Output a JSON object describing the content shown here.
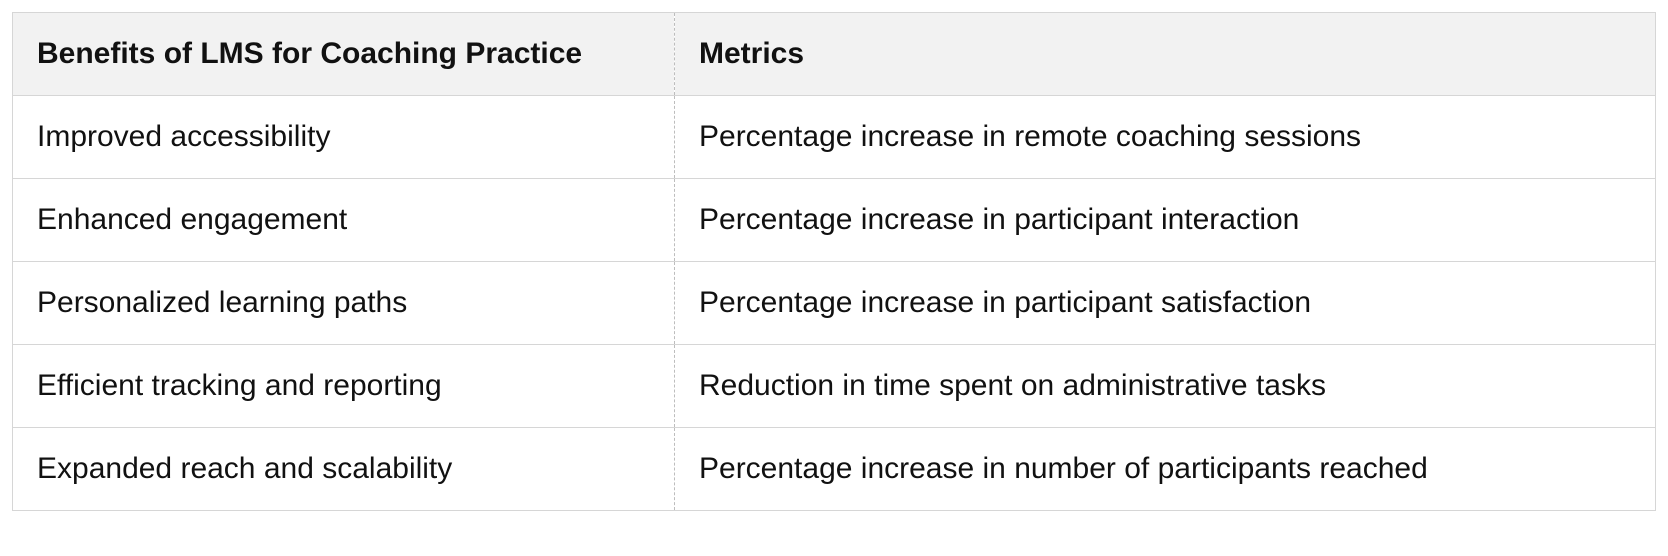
{
  "table": {
    "headers": [
      "Benefits of LMS for Coaching Practice",
      "Metrics"
    ],
    "rows": [
      [
        "Improved accessibility",
        "Percentage increase in remote coaching sessions"
      ],
      [
        "Enhanced engagement",
        "Percentage increase in participant interaction"
      ],
      [
        "Personalized learning paths",
        "Percentage increase in participant satisfaction"
      ],
      [
        "Efficient tracking and reporting",
        "Reduction in time spent on administrative tasks"
      ],
      [
        "Expanded reach and scalability",
        "Percentage increase in number of participants reached"
      ]
    ]
  }
}
